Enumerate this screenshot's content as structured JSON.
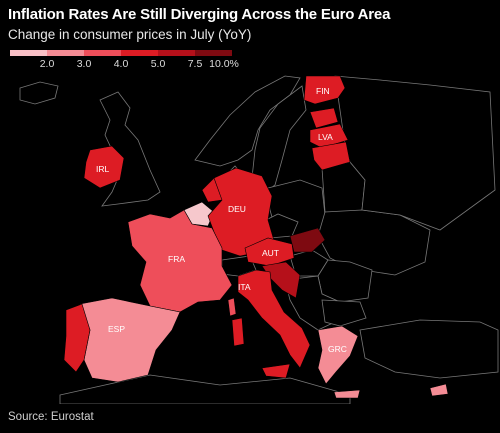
{
  "header": {
    "title": "Inflation Rates Are Still Diverging Across the Euro Area",
    "subtitle": "Change in consumer prices in July (YoY)"
  },
  "legend": {
    "colors": [
      "#f9c0c6",
      "#f48c95",
      "#ee4e5a",
      "#dd1c24",
      "#b5101a",
      "#7e0a11"
    ],
    "ticks": [
      "2.0",
      "3.0",
      "4.0",
      "5.0",
      "7.5",
      "10.0%"
    ]
  },
  "map": {
    "countries": [
      {
        "code": "FIN",
        "label": "FIN",
        "color": "#dd1c24"
      },
      {
        "code": "LVA",
        "label": "LVA",
        "color": "#dd1c24"
      },
      {
        "code": "IRL",
        "label": "IRL",
        "color": "#dd1c24"
      },
      {
        "code": "DEU",
        "label": "DEU",
        "color": "#dd1c24"
      },
      {
        "code": "FRA",
        "label": "FRA",
        "color": "#ee4e5a"
      },
      {
        "code": "AUT",
        "label": "AUT",
        "color": "#dd1c24"
      },
      {
        "code": "ITA",
        "label": "ITA",
        "color": "#dd1c24"
      },
      {
        "code": "ESP",
        "label": "ESP",
        "color": "#f48c95"
      },
      {
        "code": "GRC",
        "label": "GRC",
        "color": "#f48c95"
      }
    ],
    "other_colors": {
      "belgium": "#f6c8cc",
      "netherlands": "#dd1c24",
      "slovakia": "#7e0a11",
      "portugal": "#dd1c24",
      "baltic": "#dd1c24",
      "cyprus": "#f48c95"
    }
  },
  "footer": {
    "source": "Source: Eurostat"
  }
}
